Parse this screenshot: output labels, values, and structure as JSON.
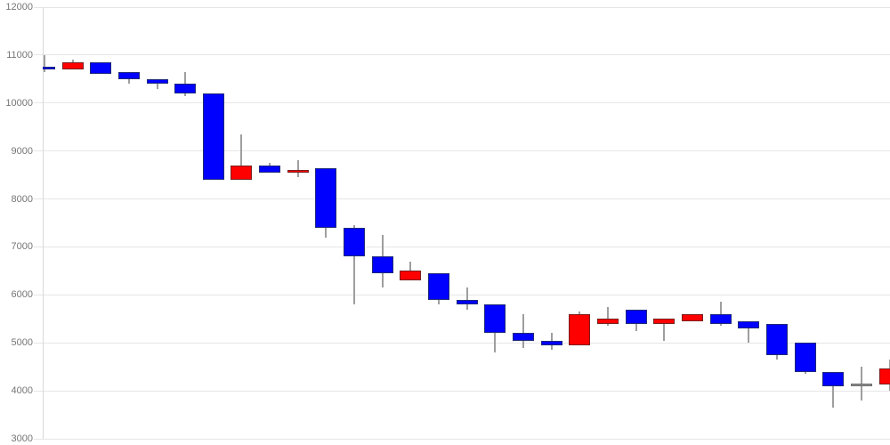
{
  "chart_data": {
    "type": "candlestick",
    "title": "",
    "xlabel": "",
    "ylabel": "",
    "ylim": [
      3000,
      12000
    ],
    "y_ticks": [
      12000,
      11000,
      10000,
      9000,
      8000,
      7000,
      6000,
      5000,
      4000,
      3000
    ],
    "x_tick_labels": [],
    "grid": "horizontal-only",
    "legend": "none",
    "colors": {
      "up": "#ff0000",
      "down": "#0000ff",
      "neutral": "#909090",
      "up_border": "#7a1f1f",
      "down_border": "#1f2a7a",
      "neutral_border": "#6e6e6e",
      "wick": "#9e9e9e",
      "gridline": "#e6e6e6",
      "axis_line": "#d9d9d9",
      "tick_label": "#757575",
      "background": "#ffffff"
    },
    "candles": [
      {
        "open": 10750,
        "high": 11000,
        "low": 10650,
        "close": 10700,
        "direction": "down"
      },
      {
        "open": 10700,
        "high": 10900,
        "low": 10700,
        "close": 10850,
        "direction": "up"
      },
      {
        "open": 10850,
        "high": 10850,
        "low": 10600,
        "close": 10600,
        "direction": "down"
      },
      {
        "open": 10650,
        "high": 10650,
        "low": 10400,
        "close": 10500,
        "direction": "down"
      },
      {
        "open": 10500,
        "high": 10500,
        "low": 10300,
        "close": 10400,
        "direction": "down"
      },
      {
        "open": 10400,
        "high": 10650,
        "low": 10150,
        "close": 10200,
        "direction": "down"
      },
      {
        "open": 10200,
        "high": 10200,
        "low": 8400,
        "close": 8400,
        "direction": "down"
      },
      {
        "open": 8400,
        "high": 9350,
        "low": 8400,
        "close": 8700,
        "direction": "up"
      },
      {
        "open": 8700,
        "high": 8750,
        "low": 8550,
        "close": 8550,
        "direction": "down"
      },
      {
        "open": 8600,
        "high": 8800,
        "low": 8450,
        "close": 8600,
        "direction": "up"
      },
      {
        "open": 8650,
        "high": 8650,
        "low": 7200,
        "close": 7400,
        "direction": "down"
      },
      {
        "open": 7400,
        "high": 7450,
        "low": 5800,
        "close": 6800,
        "direction": "down"
      },
      {
        "open": 6800,
        "high": 7250,
        "low": 6150,
        "close": 6450,
        "direction": "down"
      },
      {
        "open": 6300,
        "high": 6700,
        "low": 6300,
        "close": 6500,
        "direction": "up"
      },
      {
        "open": 6450,
        "high": 6450,
        "low": 5800,
        "close": 5900,
        "direction": "down"
      },
      {
        "open": 5900,
        "high": 6150,
        "low": 5700,
        "close": 5800,
        "direction": "down"
      },
      {
        "open": 5800,
        "high": 5800,
        "low": 4800,
        "close": 5200,
        "direction": "down"
      },
      {
        "open": 5200,
        "high": 5600,
        "low": 4900,
        "close": 5050,
        "direction": "down"
      },
      {
        "open": 5050,
        "high": 5200,
        "low": 4850,
        "close": 4950,
        "direction": "down"
      },
      {
        "open": 4950,
        "high": 5650,
        "low": 4950,
        "close": 5600,
        "direction": "up"
      },
      {
        "open": 5400,
        "high": 5750,
        "low": 5350,
        "close": 5500,
        "direction": "up"
      },
      {
        "open": 5700,
        "high": 5700,
        "low": 5250,
        "close": 5400,
        "direction": "down"
      },
      {
        "open": 5400,
        "high": 5500,
        "low": 5050,
        "close": 5500,
        "direction": "up"
      },
      {
        "open": 5450,
        "high": 5600,
        "low": 5450,
        "close": 5600,
        "direction": "up"
      },
      {
        "open": 5600,
        "high": 5850,
        "low": 5350,
        "close": 5400,
        "direction": "down"
      },
      {
        "open": 5450,
        "high": 5450,
        "low": 5000,
        "close": 5300,
        "direction": "down"
      },
      {
        "open": 5400,
        "high": 5400,
        "low": 4650,
        "close": 4750,
        "direction": "down"
      },
      {
        "open": 5000,
        "high": 5000,
        "low": 4350,
        "close": 4400,
        "direction": "down"
      },
      {
        "open": 4400,
        "high": 4400,
        "low": 3650,
        "close": 4100,
        "direction": "down"
      },
      {
        "open": 4150,
        "high": 4500,
        "low": 3800,
        "close": 4150,
        "direction": "neutral"
      },
      {
        "open": 4130,
        "high": 4650,
        "low": 4000,
        "close": 4460,
        "direction": "up"
      }
    ]
  }
}
